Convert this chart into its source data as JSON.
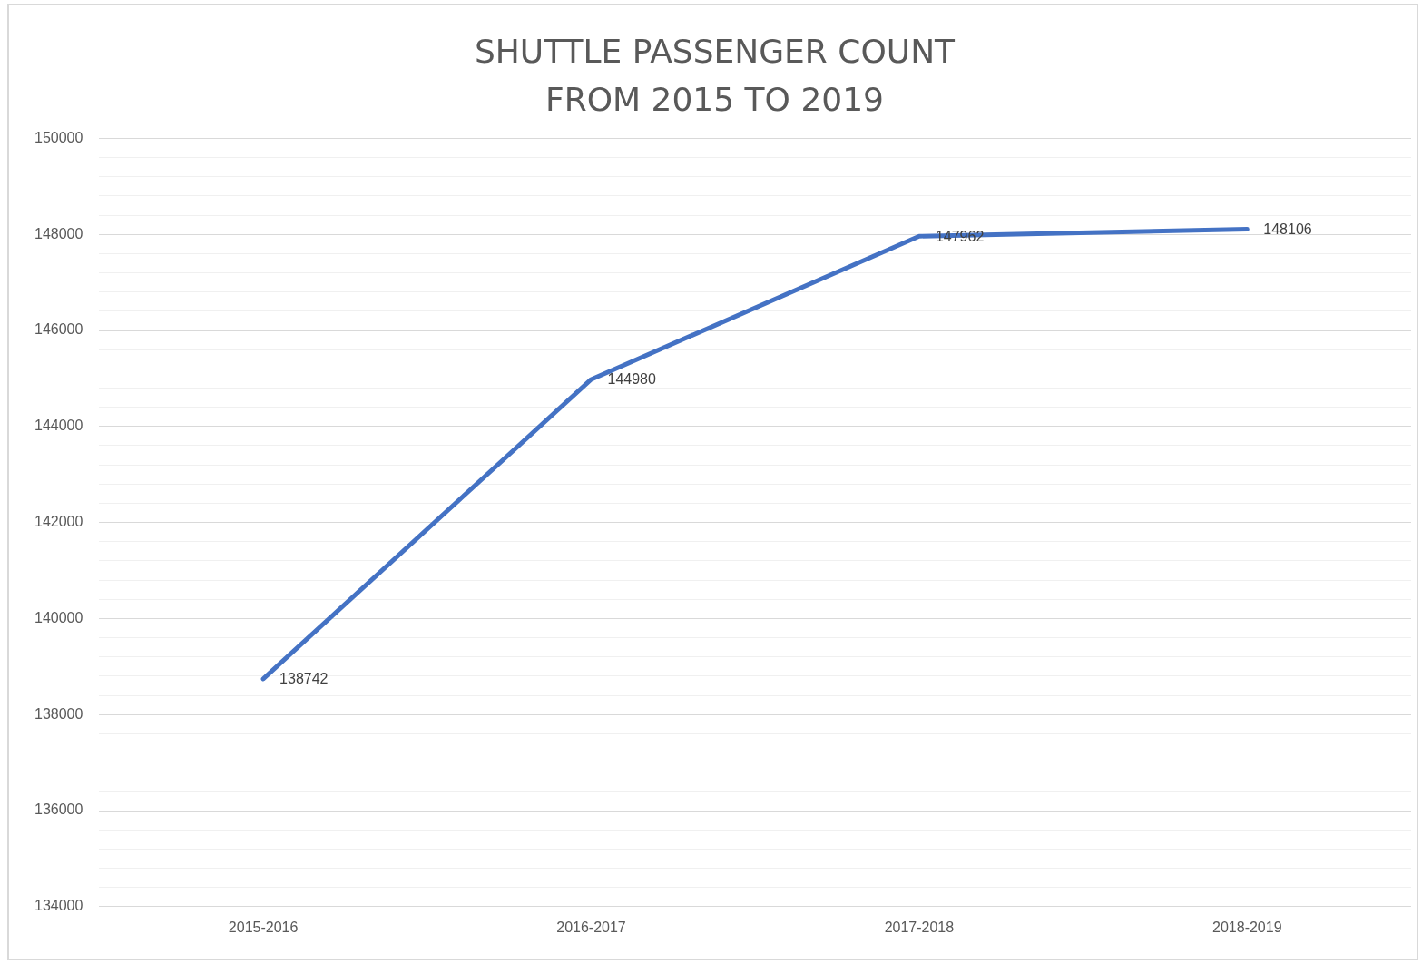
{
  "chart_data": {
    "type": "line",
    "title": "SHUTTLE PASSENGER COUNT\nFROM 2015 TO 2019",
    "categories": [
      "2015-2016",
      "2016-2017",
      "2017-2018",
      "2018-2019"
    ],
    "series": [
      {
        "color": "#4472c4",
        "values": [
          138742,
          144980,
          147962,
          148106
        ]
      }
    ],
    "data_labels": true,
    "marker": "none",
    "grid": "y",
    "legend": false,
    "ylim": [
      134000,
      150000
    ],
    "yticks": [
      134000,
      {
        "value": 134400,
        "label": null
      },
      {
        "value": 134800,
        "label": null
      },
      {
        "value": 135200,
        "label": null
      },
      {
        "value": 135600,
        "label": null
      },
      136000,
      {
        "value": 136400,
        "label": null
      },
      {
        "value": 136800,
        "label": null
      },
      {
        "value": 137200,
        "label": null
      },
      {
        "value": 137600,
        "label": null
      },
      138000,
      {
        "value": 138400,
        "label": null
      },
      {
        "value": 138800,
        "label": null
      },
      {
        "value": 139200,
        "label": null
      },
      {
        "value": 139600,
        "label": null
      },
      140000,
      {
        "value": 140400,
        "label": null
      },
      {
        "value": 140800,
        "label": null
      },
      {
        "value": 141200,
        "label": null
      },
      {
        "value": 141600,
        "label": null
      },
      142000,
      {
        "value": 142400,
        "label": null
      },
      {
        "value": 142800,
        "label": null
      },
      {
        "value": 143200,
        "label": null
      },
      {
        "value": 143600,
        "label": null
      },
      144000,
      {
        "value": 144400,
        "label": null
      },
      {
        "value": 144800,
        "label": null
      },
      {
        "value": 145200,
        "label": null
      },
      {
        "value": 145600,
        "label": null
      },
      146000,
      {
        "value": 146400,
        "label": null
      },
      {
        "value": 146800,
        "label": null
      },
      {
        "value": 147200,
        "label": null
      },
      {
        "value": 147600,
        "label": null
      },
      148000,
      {
        "value": 148400,
        "label": null
      },
      {
        "value": 148800,
        "label": null
      },
      {
        "value": 149200,
        "label": null
      },
      {
        "value": 149600,
        "label": null
      },
      150000
    ]
  }
}
